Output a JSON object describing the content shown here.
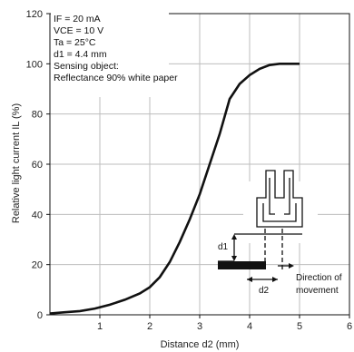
{
  "chart_data": {
    "type": "line",
    "xlabel": "Distance d2 (mm)",
    "ylabel": "Relative light current IL (%)",
    "xlim": [
      0,
      6
    ],
    "ylim": [
      0,
      120
    ],
    "xticks": [
      "1",
      "2",
      "3",
      "4",
      "5",
      "6"
    ],
    "yticks": [
      "0",
      "20",
      "40",
      "60",
      "80",
      "100",
      "120"
    ],
    "grid": true,
    "series": [
      {
        "x": [
          0,
          0.3,
          0.6,
          0.9,
          1.2,
          1.5,
          1.8,
          2.0,
          2.2,
          2.4,
          2.6,
          2.8,
          3.0,
          3.2,
          3.4,
          3.6,
          3.8,
          4.0,
          4.2,
          4.4,
          4.6,
          4.8,
          5.0
        ],
        "y": [
          0.5,
          1,
          1.5,
          2.5,
          4,
          6,
          8.5,
          11,
          15,
          21,
          29,
          38,
          48,
          60,
          72,
          86,
          92,
          95.5,
          98,
          99.5,
          100,
          100,
          100
        ]
      }
    ],
    "annotations": {
      "conditions": [
        "IF = 20 mA",
        "VCE = 10 V",
        "Ta = 25°C",
        "d1 = 4.4 mm",
        "Sensing object:",
        "Reflectance 90% white paper"
      ],
      "diagram_labels": {
        "d1": "d1",
        "d2": "d2",
        "direction_line1": "Direction of",
        "direction_line2": "movement"
      }
    }
  }
}
